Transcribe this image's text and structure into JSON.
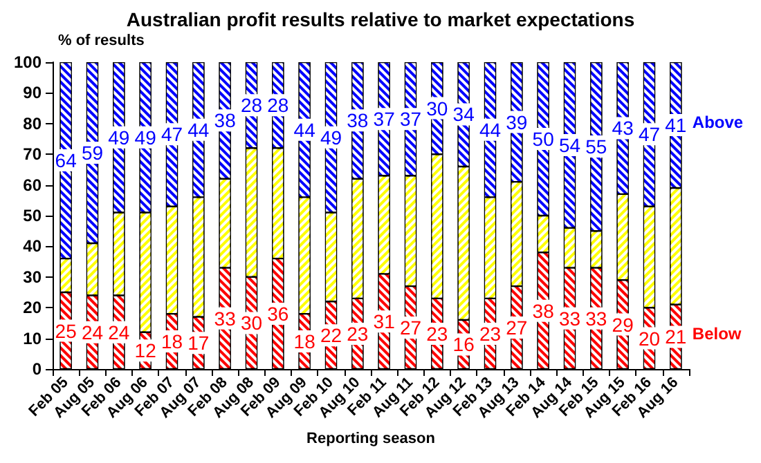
{
  "chart_data": {
    "type": "bar",
    "title": "Australian profit results relative to market expectations",
    "xlabel": "Reporting season",
    "ylabel": "% of results",
    "categories": [
      "Feb 05",
      "Aug 05",
      "Feb 06",
      "Aug 06",
      "Feb 07",
      "Aug 07",
      "Feb 08",
      "Aug 08",
      "Feb 09",
      "Aug 09",
      "Feb 10",
      "Aug 10",
      "Feb 11",
      "Aug 11",
      "Feb 12",
      "Aug 12",
      "Feb 13",
      "Aug 13",
      "Feb 14",
      "Aug 14",
      "Feb 15",
      "Aug 15",
      "Feb 16",
      "Aug 16"
    ],
    "stacked": true,
    "series": [
      {
        "name": "Below",
        "color": "#ff0000",
        "values": [
          25,
          24,
          24,
          12,
          18,
          17,
          33,
          30,
          36,
          18,
          22,
          23,
          31,
          27,
          23,
          16,
          23,
          27,
          38,
          33,
          33,
          29,
          20,
          21
        ],
        "value_labels": [
          "25",
          "24",
          "24",
          "12",
          "18",
          "17",
          "33",
          "30",
          "36",
          "18",
          "22",
          "23",
          "31",
          "27",
          "23",
          "16",
          "23",
          "27",
          "38",
          "33",
          "33",
          "29",
          "20",
          "21"
        ]
      },
      {
        "color": "#ffff00",
        "values": [
          11,
          17,
          27,
          39,
          35,
          39,
          29,
          42,
          36,
          38,
          29,
          39,
          32,
          36,
          47,
          50,
          33,
          34,
          12,
          13,
          12,
          28,
          33,
          38
        ]
      },
      {
        "name": "Above",
        "color": "#0000ff",
        "values": [
          64,
          59,
          49,
          49,
          47,
          44,
          38,
          28,
          28,
          44,
          49,
          38,
          37,
          37,
          30,
          34,
          44,
          39,
          50,
          54,
          55,
          43,
          47,
          41
        ],
        "value_labels": [
          "64",
          "59",
          "49",
          "49",
          "47",
          "44",
          "38",
          "28",
          "28",
          "44",
          "49",
          "38",
          "37",
          "37",
          "30",
          "34",
          "44",
          "39",
          "50",
          "54",
          "55",
          "43",
          "47",
          "41"
        ]
      }
    ],
    "ylim": [
      0,
      100
    ],
    "yticks": [
      0,
      10,
      20,
      30,
      40,
      50,
      60,
      70,
      80,
      90,
      100
    ],
    "grid": false,
    "legend": false
  }
}
